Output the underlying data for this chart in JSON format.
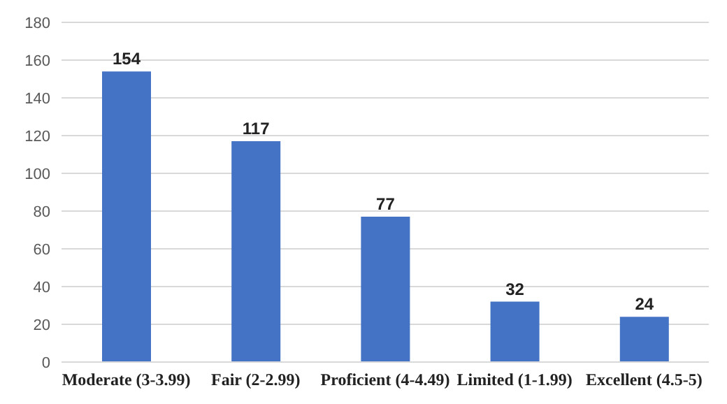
{
  "chart_data": {
    "type": "bar",
    "categories": [
      "Moderate (3-3.99)",
      "Fair (2-2.99)",
      "Proficient (4-4.49)",
      "Limited (1-1.99)",
      "Excellent (4.5-5)"
    ],
    "values": [
      154,
      117,
      77,
      32,
      24
    ],
    "color": "#4472c4",
    "ylim": [
      0,
      180
    ],
    "yticks": [
      0,
      20,
      40,
      60,
      80,
      100,
      120,
      140,
      160,
      180
    ],
    "grid": "y",
    "data_labels": true
  }
}
